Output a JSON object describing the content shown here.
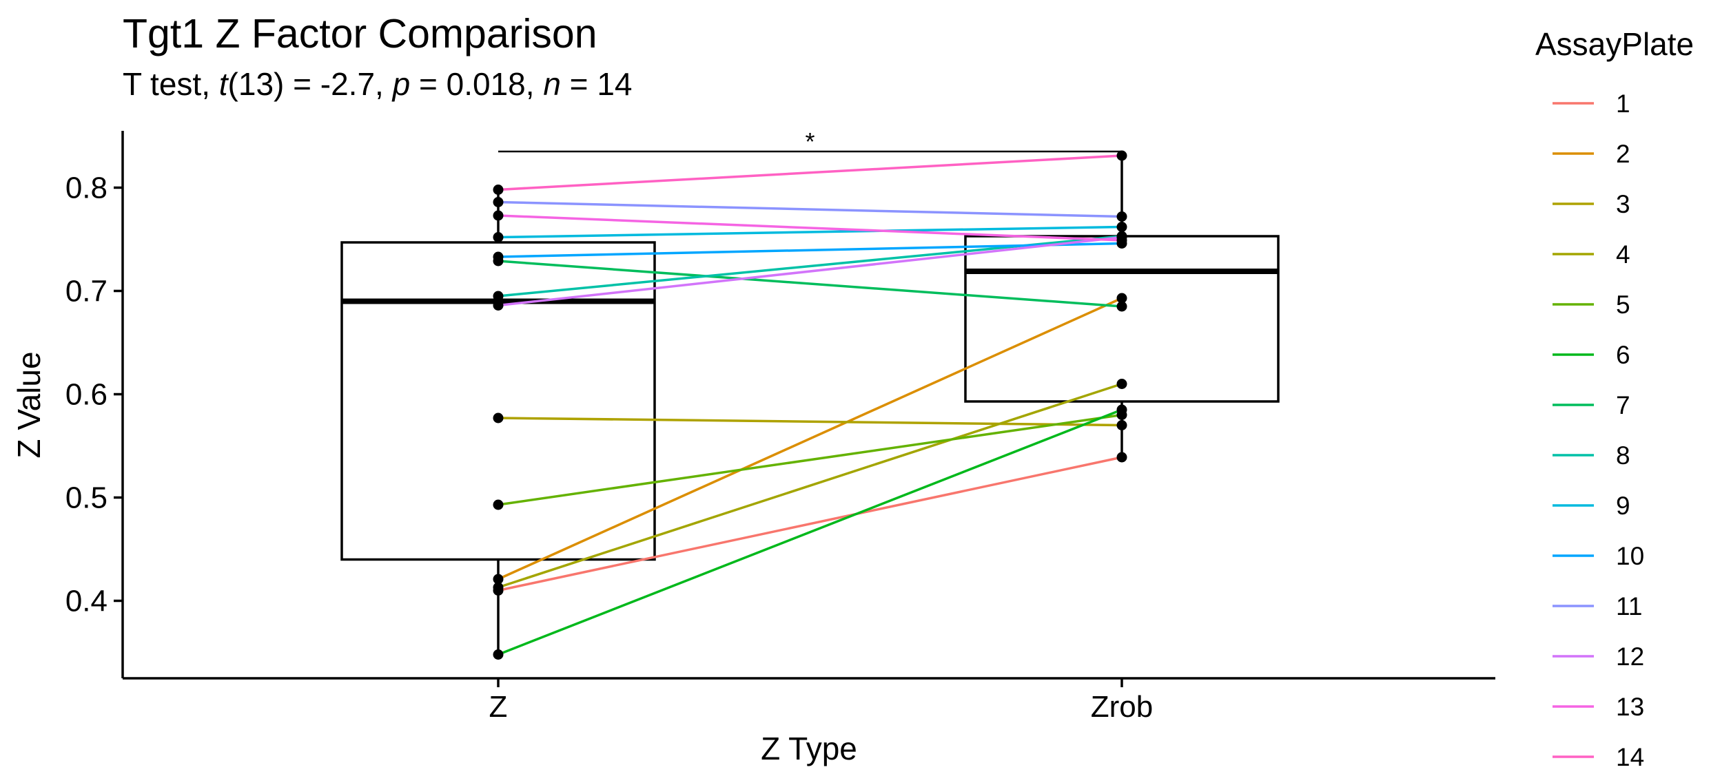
{
  "chart_data": {
    "type": "box",
    "title": "Tgt1 Z Factor Comparison",
    "subtitle": {
      "test": "T test, ",
      "stat_name": "t",
      "df": "(13)",
      "stat_value": " = -2.7, ",
      "p_name": "p",
      "p_value": " = 0.018, ",
      "n_name": "n",
      "n_value": " = 14"
    },
    "xlabel": "Z Type",
    "ylabel": "Z Value",
    "categories": [
      "Z",
      "Zrob"
    ],
    "ylim": [
      0.325,
      0.855
    ],
    "yticks": [
      0.4,
      0.5,
      0.6,
      0.7,
      0.8
    ],
    "ytick_labels": [
      "0.4",
      "0.5",
      "0.6",
      "0.7",
      "0.8"
    ],
    "boxes": [
      {
        "category": "Z",
        "whisker_low": 0.348,
        "q1": 0.44,
        "median": 0.69,
        "q3": 0.747,
        "whisker_high": 0.798
      },
      {
        "category": "Zrob",
        "whisker_low": 0.539,
        "q1": 0.593,
        "median": 0.719,
        "q3": 0.753,
        "whisker_high": 0.831
      }
    ],
    "significance": {
      "label": "*",
      "from": "Z",
      "to": "Zrob",
      "y": 0.835
    },
    "legend_title": "AssayPlate",
    "legend_position": "right",
    "series": [
      {
        "name": "1",
        "color": "#F8766D",
        "values": [
          0.41,
          0.539
        ]
      },
      {
        "name": "2",
        "color": "#DB8E00",
        "values": [
          0.421,
          0.693
        ]
      },
      {
        "name": "3",
        "color": "#AEA200",
        "values": [
          0.577,
          0.57
        ]
      },
      {
        "name": "4",
        "color": "#A3A500",
        "values": [
          0.413,
          0.61
        ]
      },
      {
        "name": "5",
        "color": "#64B200",
        "values": [
          0.493,
          0.58
        ]
      },
      {
        "name": "6",
        "color": "#00B81B",
        "values": [
          0.348,
          0.585
        ]
      },
      {
        "name": "7",
        "color": "#00BD5C",
        "values": [
          0.729,
          0.685
        ]
      },
      {
        "name": "8",
        "color": "#00C1A7",
        "values": [
          0.695,
          0.753
        ]
      },
      {
        "name": "9",
        "color": "#00BADE",
        "values": [
          0.752,
          0.762
        ]
      },
      {
        "name": "10",
        "color": "#00A6FF",
        "values": [
          0.733,
          0.746
        ]
      },
      {
        "name": "11",
        "color": "#8B93FF",
        "values": [
          0.786,
          0.772
        ]
      },
      {
        "name": "12",
        "color": "#D274FA",
        "values": [
          0.686,
          0.752
        ]
      },
      {
        "name": "13",
        "color": "#F564E3",
        "values": [
          0.773,
          0.749
        ]
      },
      {
        "name": "14",
        "color": "#FF61C3",
        "values": [
          0.798,
          0.831
        ]
      }
    ]
  }
}
